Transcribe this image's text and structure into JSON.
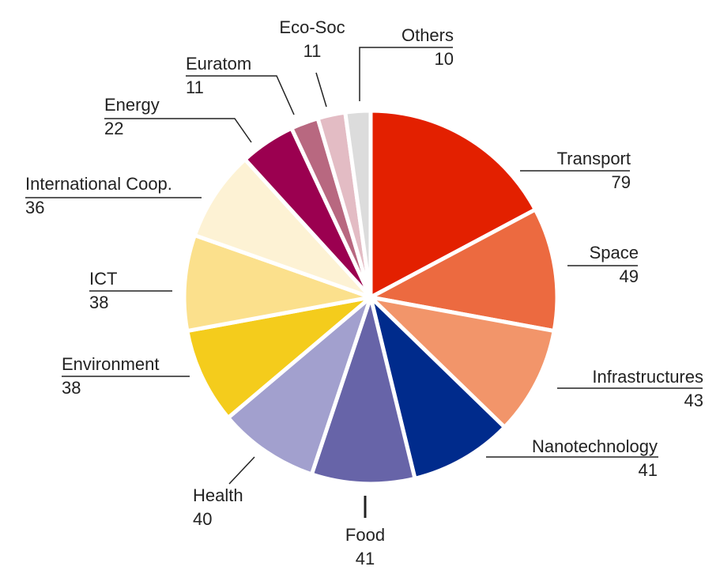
{
  "chart_data": {
    "type": "pie",
    "title": "",
    "start": "top",
    "direction": "clockwise",
    "slices": [
      {
        "label": "Transport",
        "value": 79,
        "color": "#e32000"
      },
      {
        "label": "Space",
        "value": 49,
        "color": "#ec6a40"
      },
      {
        "label": "Infrastructures",
        "value": 43,
        "color": "#f2956a"
      },
      {
        "label": "Nanotechnology",
        "value": 41,
        "color": "#002b8c"
      },
      {
        "label": "Food",
        "value": 41,
        "color": "#6764a8"
      },
      {
        "label": "Health",
        "value": 40,
        "color": "#a2a0ce"
      },
      {
        "label": "Environment",
        "value": 38,
        "color": "#f4cc1c"
      },
      {
        "label": "ICT",
        "value": 38,
        "color": "#fbe08c"
      },
      {
        "label": "International Coop.",
        "value": 36,
        "color": "#fdf2d4"
      },
      {
        "label": "Energy",
        "value": 22,
        "color": "#9b0050"
      },
      {
        "label": "Euratom",
        "value": 11,
        "color": "#b86880"
      },
      {
        "label": "Eco-Soc",
        "value": 11,
        "color": "#e3bcc4"
      },
      {
        "label": "Others",
        "value": 10,
        "color": "#dcdcdc"
      }
    ]
  }
}
